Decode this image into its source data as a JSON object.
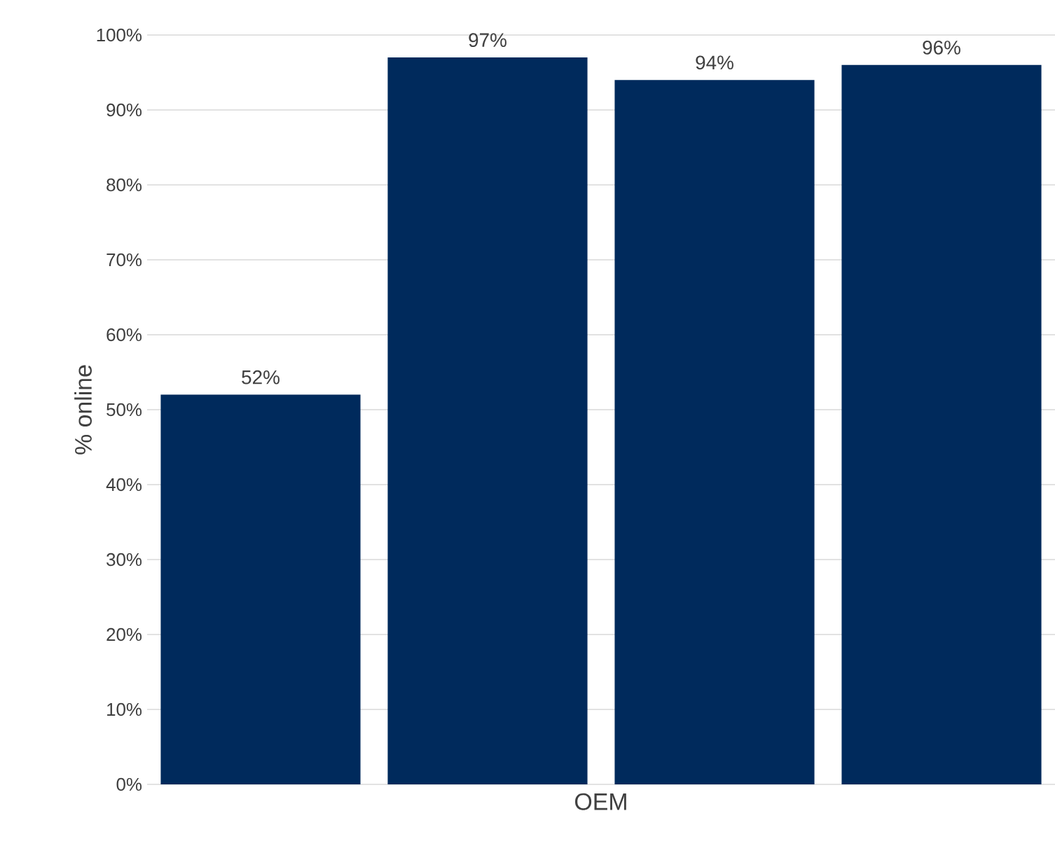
{
  "chart_data": {
    "type": "bar",
    "xlabel": "OEM",
    "ylabel": "% online",
    "categories": [
      null,
      null,
      null,
      null
    ],
    "values": [
      52,
      97,
      94,
      96
    ],
    "value_labels": [
      "52%",
      "97%",
      "94%",
      "96%"
    ],
    "color": "#002a5c",
    "ylim": [
      0,
      100
    ],
    "yticks": [
      {
        "value": 0,
        "label": "0%"
      },
      {
        "value": 10,
        "label": "10%"
      },
      {
        "value": 20,
        "label": "20%"
      },
      {
        "value": 30,
        "label": "30%"
      },
      {
        "value": 40,
        "label": "40%"
      },
      {
        "value": 50,
        "label": "50%"
      },
      {
        "value": 60,
        "label": "60%"
      },
      {
        "value": 70,
        "label": "70%"
      },
      {
        "value": 80,
        "label": "80%"
      },
      {
        "value": 90,
        "label": "90%"
      },
      {
        "value": 100,
        "label": "100%"
      }
    ],
    "grid": "y",
    "tick_labels": "y"
  }
}
